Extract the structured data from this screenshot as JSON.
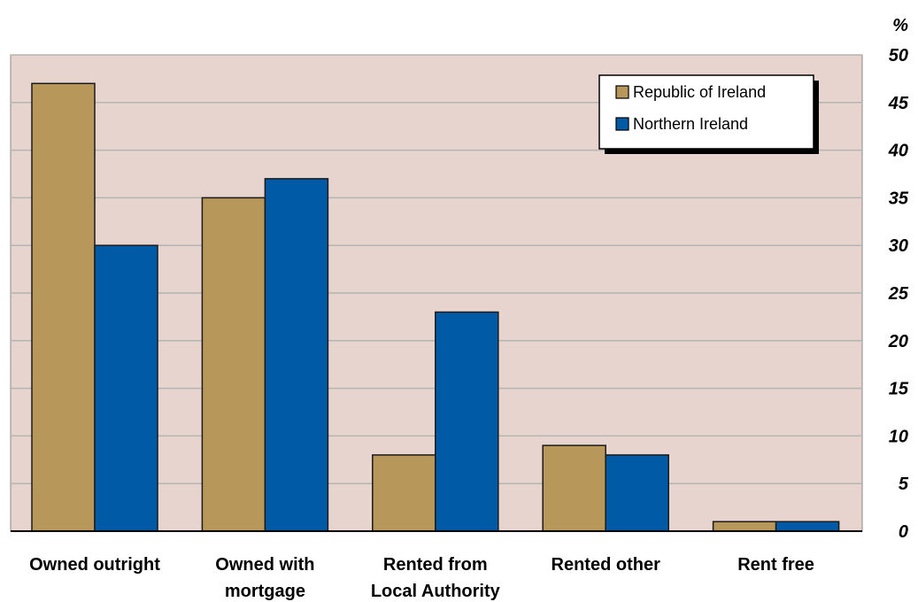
{
  "chart_data": {
    "type": "bar",
    "categories": [
      [
        "Owned outright"
      ],
      [
        "Owned with",
        "mortgage"
      ],
      [
        "Rented from",
        "Local Authority"
      ],
      [
        "Rented other"
      ],
      [
        "Rent free"
      ]
    ],
    "series": [
      {
        "name": "Republic of Ireland",
        "values": [
          47,
          35,
          8,
          9,
          1
        ],
        "color": "#b8975a"
      },
      {
        "name": "Northern Ireland",
        "values": [
          30,
          37,
          23,
          8,
          1
        ],
        "color": "#005aa6"
      }
    ],
    "y_unit": "%",
    "ylim": [
      0,
      50
    ],
    "yticks": [
      0,
      5,
      10,
      15,
      20,
      25,
      30,
      35,
      40,
      45,
      50
    ],
    "y_axis_side": "right",
    "grid": true,
    "legend_position": "top-right",
    "plot_background": "#e8d4cf",
    "grid_color": "#b4b4b4"
  }
}
